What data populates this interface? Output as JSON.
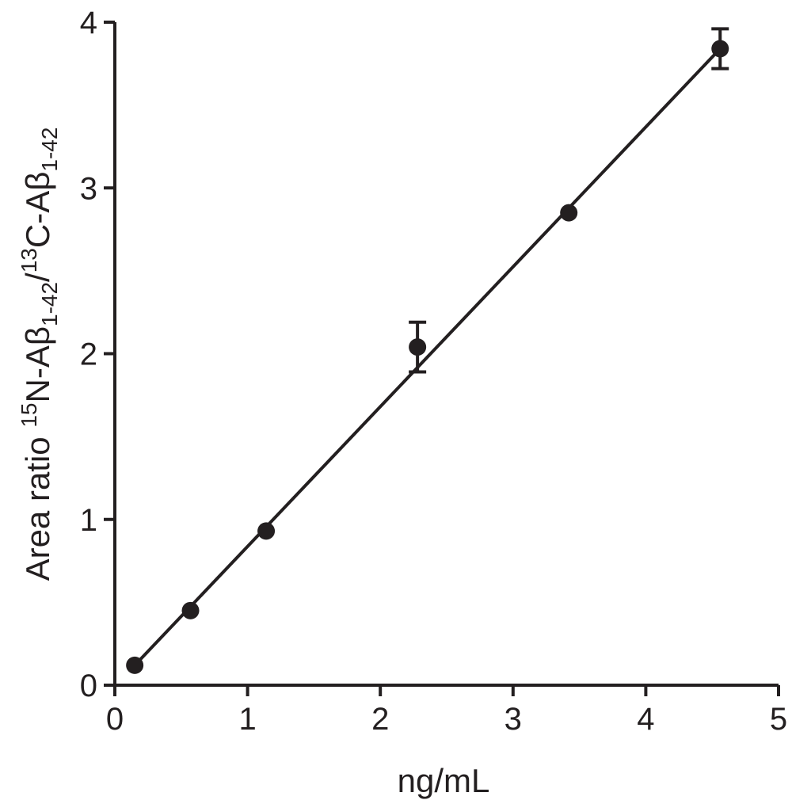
{
  "chart_data": {
    "type": "scatter",
    "xlabel": "ng/mL",
    "ylabel": {
      "prefix": "Area ratio ",
      "sup1": "15",
      "part1": "N-Aβ",
      "sub1": "1-42",
      "slash": "/",
      "sup2": "13",
      "part2": "C-Aβ",
      "sub2": "1-42"
    },
    "xlim": [
      0,
      5
    ],
    "ylim": [
      0,
      4
    ],
    "xticks": [
      0,
      1,
      2,
      3,
      4,
      5
    ],
    "yticks": [
      0,
      1,
      2,
      3,
      4
    ],
    "grid": false,
    "series": [
      {
        "points": [
          {
            "x": 0.15,
            "y": 0.12,
            "err": 0
          },
          {
            "x": 0.57,
            "y": 0.45,
            "err": 0
          },
          {
            "x": 1.14,
            "y": 0.93,
            "err": 0
          },
          {
            "x": 2.28,
            "y": 2.04,
            "err": 0.15
          },
          {
            "x": 3.42,
            "y": 2.85,
            "err": 0
          },
          {
            "x": 4.56,
            "y": 3.84,
            "err": 0.12
          }
        ]
      }
    ],
    "fit_line": {
      "x": [
        0.15,
        4.56
      ],
      "y": [
        0.12,
        3.84
      ]
    },
    "colors": {
      "marker": "#231f20",
      "line": "#231f20",
      "axis": "#231f20"
    }
  }
}
